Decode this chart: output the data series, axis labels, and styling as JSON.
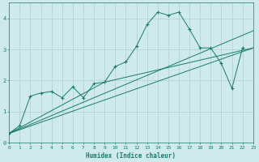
{
  "background_color": "#ceeaea",
  "grid_color": "#aed0d0",
  "line_color": "#1a7a6e",
  "xlabel": "Humidex (Indice chaleur)",
  "xlim": [
    0,
    23
  ],
  "ylim": [
    0,
    4.5
  ],
  "xticks": [
    0,
    1,
    2,
    3,
    4,
    5,
    6,
    7,
    8,
    9,
    10,
    11,
    12,
    13,
    14,
    15,
    16,
    17,
    18,
    19,
    20,
    21,
    22,
    23
  ],
  "yticks": [
    0,
    1,
    2,
    3,
    4
  ],
  "series1_x": [
    0,
    1,
    2,
    3,
    4,
    5,
    6,
    7,
    8,
    9,
    10,
    11,
    12,
    13,
    14,
    15,
    16,
    17,
    18,
    19,
    20,
    21,
    22,
    23
  ],
  "series1_y": [
    0.3,
    0.55,
    1.5,
    1.6,
    1.65,
    1.45,
    1.8,
    1.45,
    1.9,
    1.95,
    2.45,
    2.6,
    3.1,
    3.8,
    4.2,
    4.1,
    4.2,
    3.65,
    3.05,
    3.05,
    2.55,
    1.75,
    3.05,
    null
  ],
  "series2_x": [
    0,
    23
  ],
  "series2_y": [
    0.3,
    3.05
  ],
  "series3_x": [
    0,
    23
  ],
  "series3_y": [
    0.3,
    3.6
  ],
  "series4_x": [
    0,
    9,
    23
  ],
  "series4_y": [
    0.3,
    1.95,
    3.05
  ]
}
